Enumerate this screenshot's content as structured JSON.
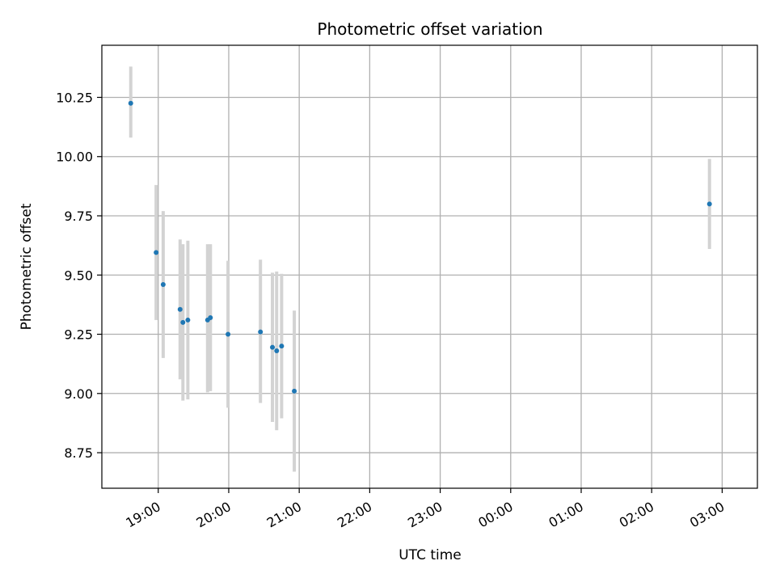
{
  "chart_data": {
    "type": "scatter",
    "title": "Photometric offset variation",
    "xlabel": "UTC time",
    "ylabel": "Photometric offset",
    "x_unit": "hours",
    "xlim": [
      18.2,
      27.5
    ],
    "ylim": [
      8.6,
      10.47
    ],
    "x_ticks": [
      {
        "value": 19,
        "label": "19:00"
      },
      {
        "value": 20,
        "label": "20:00"
      },
      {
        "value": 21,
        "label": "21:00"
      },
      {
        "value": 22,
        "label": "22:00"
      },
      {
        "value": 23,
        "label": "23:00"
      },
      {
        "value": 24,
        "label": "00:00"
      },
      {
        "value": 25,
        "label": "01:00"
      },
      {
        "value": 26,
        "label": "02:00"
      },
      {
        "value": 27,
        "label": "03:00"
      }
    ],
    "y_ticks": [
      {
        "value": 8.75,
        "label": "8.75"
      },
      {
        "value": 9.0,
        "label": "9.00"
      },
      {
        "value": 9.25,
        "label": "9.25"
      },
      {
        "value": 9.5,
        "label": "9.50"
      },
      {
        "value": 9.75,
        "label": "9.75"
      },
      {
        "value": 10.0,
        "label": "10.00"
      },
      {
        "value": 10.25,
        "label": "10.25"
      }
    ],
    "grid": true,
    "colors": {
      "point": "#1f77b4",
      "errorbar": "#d3d3d3",
      "grid": "#b0b0b0"
    },
    "points": [
      {
        "x": 18.61,
        "y": 10.225,
        "lo": 10.08,
        "hi": 10.38
      },
      {
        "x": 18.97,
        "y": 9.595,
        "lo": 9.31,
        "hi": 9.88
      },
      {
        "x": 19.07,
        "y": 9.46,
        "lo": 9.15,
        "hi": 9.77
      },
      {
        "x": 19.31,
        "y": 9.355,
        "lo": 9.06,
        "hi": 9.65
      },
      {
        "x": 19.35,
        "y": 9.3,
        "lo": 8.97,
        "hi": 9.63
      },
      {
        "x": 19.42,
        "y": 9.31,
        "lo": 8.975,
        "hi": 9.645
      },
      {
        "x": 19.7,
        "y": 9.31,
        "lo": 9.005,
        "hi": 9.63
      },
      {
        "x": 19.74,
        "y": 9.32,
        "lo": 9.01,
        "hi": 9.63
      },
      {
        "x": 19.99,
        "y": 9.25,
        "lo": 8.94,
        "hi": 9.56
      },
      {
        "x": 20.45,
        "y": 9.26,
        "lo": 8.96,
        "hi": 9.565
      },
      {
        "x": 20.62,
        "y": 9.195,
        "lo": 8.88,
        "hi": 9.51
      },
      {
        "x": 20.68,
        "y": 9.18,
        "lo": 8.845,
        "hi": 9.515
      },
      {
        "x": 20.75,
        "y": 9.2,
        "lo": 8.895,
        "hi": 9.505
      },
      {
        "x": 20.93,
        "y": 9.01,
        "lo": 8.67,
        "hi": 9.35
      },
      {
        "x": 26.82,
        "y": 9.8,
        "lo": 9.61,
        "hi": 9.99
      }
    ]
  }
}
